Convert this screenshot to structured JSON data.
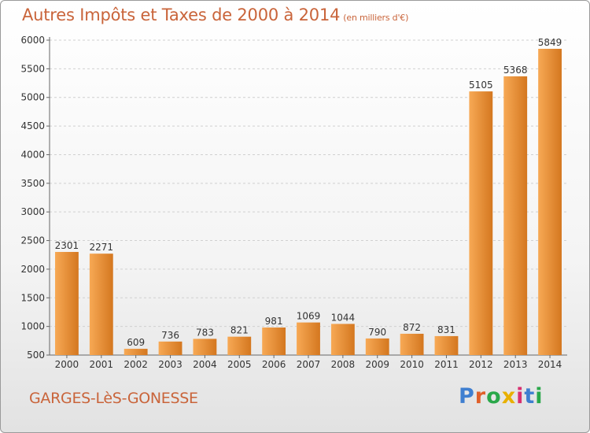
{
  "header": {
    "title": "Autres Impôts et Taxes de 2000 à 2014",
    "subtitle": "(en milliers d'€)"
  },
  "footer": {
    "city": "GARGES-LèS-GONESSE",
    "logo_letters": [
      "P",
      "r",
      "o",
      "x",
      "i",
      "t",
      "i"
    ],
    "logo_colors": [
      "#3f7fd0",
      "#e0602a",
      "#2aa84a",
      "#e8b000",
      "#d83070",
      "#3f7fd0",
      "#2aa84a"
    ]
  },
  "chart_data": {
    "type": "bar",
    "title": "Autres Impôts et Taxes de 2000 à 2014",
    "subtitle": "(en milliers d'€)",
    "categories": [
      "2000",
      "2001",
      "2002",
      "2003",
      "2004",
      "2005",
      "2006",
      "2007",
      "2008",
      "2009",
      "2010",
      "2011",
      "2012",
      "2013",
      "2014"
    ],
    "values": [
      2301,
      2271,
      609,
      736,
      783,
      821,
      981,
      1069,
      1044,
      790,
      872,
      831,
      5105,
      5368,
      5849
    ],
    "ylim": [
      500,
      6000
    ],
    "yticks": [
      500,
      1000,
      1500,
      2000,
      2500,
      3000,
      3500,
      4000,
      4500,
      5000,
      5500,
      6000
    ],
    "grid": true,
    "bar_color_light": "#f7a955",
    "bar_color_dark": "#d4771f"
  }
}
